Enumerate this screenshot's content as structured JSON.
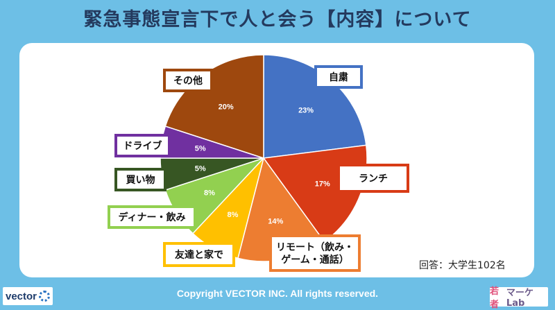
{
  "title": "緊急事態宣言下で人と会う【内容】について",
  "note": "回答：大学生102名",
  "footer": {
    "copyright": "Copyright VECTOR INC. All rights reserved.",
    "brand_left": "vector",
    "brand_right_accent": "若者",
    "brand_right": "マーケLab"
  },
  "colors": {
    "background": "#6dbfe6",
    "title": "#243a5e"
  },
  "chart_data": {
    "type": "pie",
    "start_angle_deg": 0,
    "direction": "clockwise",
    "slices": [
      {
        "label": "自粛",
        "value": 23,
        "value_label": "23%",
        "color": "#4472c4",
        "label_box_border": "#4472c4"
      },
      {
        "label": "ランチ",
        "value": 17,
        "value_label": "17%",
        "color": "#d83b16",
        "label_box_border": "#d83b16"
      },
      {
        "label": "リモート（飲み・ゲーム・通話）",
        "label_lines": [
          "リモート（飲み・",
          "ゲーム・通話）"
        ],
        "value": 14,
        "value_label": "14%",
        "color": "#ed7d31",
        "label_box_border": "#ed7d31"
      },
      {
        "label": "友達と家で",
        "value": 8,
        "value_label": "8%",
        "color": "#ffc000",
        "label_box_border": "#ffc000"
      },
      {
        "label": "ディナー・飲み",
        "value": 8,
        "value_label": "8%",
        "color": "#92d050",
        "label_box_border": "#92d050"
      },
      {
        "label": "買い物",
        "value": 5,
        "value_label": "5%",
        "color": "#375623",
        "label_box_border": "#375623"
      },
      {
        "label": "ドライブ",
        "value": 5,
        "value_label": "5%",
        "color": "#7030a0",
        "label_box_border": "#7030a0"
      },
      {
        "label": "その他",
        "value": 20,
        "value_label": "20%",
        "color": "#9e480e",
        "label_box_border": "#9e480e"
      }
    ]
  }
}
